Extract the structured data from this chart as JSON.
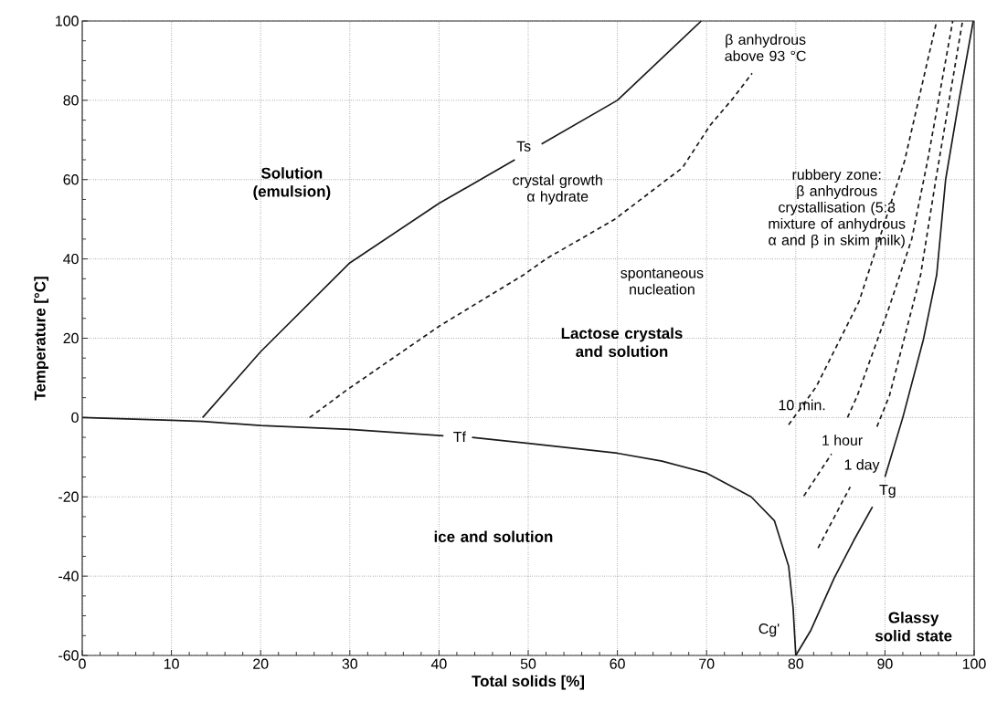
{
  "chart_data": {
    "type": "line",
    "xlabel": "Total solids [%]",
    "ylabel": "Temperature [°C]",
    "xlim": [
      0,
      100
    ],
    "ylim": [
      -60,
      100
    ],
    "xticks": [
      0,
      10,
      20,
      30,
      40,
      50,
      60,
      70,
      80,
      90,
      100
    ],
    "yticks": [
      -60,
      -40,
      -20,
      0,
      20,
      40,
      60,
      80,
      100
    ],
    "grid": true,
    "series": [
      {
        "color": "#1a1a1a",
        "line_style": "solid",
        "x": [
          13.5,
          20,
          30,
          40,
          48.5,
          50,
          51.5,
          60,
          69.4
        ],
        "values": [
          0,
          16.6,
          39,
          54,
          65,
          null,
          69,
          80,
          100
        ]
      },
      {
        "color": "#1a1a1a",
        "line_style": "solid",
        "x": [
          0,
          10,
          13.5,
          20,
          30,
          40.5,
          42,
          43.7,
          50,
          60,
          65,
          70,
          75,
          77.6,
          79.2,
          79.7,
          80
        ],
        "values": [
          0,
          -0.7,
          -1,
          -2,
          -3,
          -4.6,
          null,
          -5,
          -6.5,
          -9,
          -11,
          -14,
          -20,
          -26,
          -37.5,
          -48,
          -60
        ]
      },
      {
        "color": "#1a1a1a",
        "line_style": "solid",
        "x": [
          80,
          81.7,
          84.3,
          86.5,
          88.6,
          89.3,
          90,
          92,
          94.3,
          95.8,
          96.8,
          98.3,
          99.9
        ],
        "values": [
          -60,
          -53.6,
          -40.5,
          -31,
          -22.5,
          null,
          -15,
          0,
          19.6,
          36,
          60,
          80,
          100
        ]
      },
      {
        "color": "#1a1a1a",
        "line_style": "dashed",
        "x": [
          25.5,
          29.7,
          40,
          49.5,
          52,
          59.7,
          67.3,
          70.4,
          73,
          75.1
        ],
        "values": [
          0,
          7,
          23,
          36,
          40,
          50,
          63,
          73.7,
          80.6,
          86.8
        ]
      },
      {
        "color": "#1a1a1a",
        "line_style": "dashed",
        "x": [
          79.2,
          82.3,
          87.1,
          92.2,
          95.8
        ],
        "values": [
          -1.8,
          7.8,
          29.3,
          64.7,
          100
        ]
      },
      {
        "color": "#1a1a1a",
        "line_style": "dashed",
        "x": [
          80.9,
          84,
          85,
          85.8,
          86.9,
          90.5,
          93,
          94.8,
          97.6
        ],
        "values": [
          -19.8,
          -9.2,
          null,
          0,
          5.5,
          28,
          45,
          65,
          100
        ]
      },
      {
        "color": "#1a1a1a",
        "line_style": "dashed",
        "x": [
          82.5,
          86.1,
          87.5,
          89.1,
          90.5,
          94,
          95.7,
          97.2,
          98.7
        ],
        "values": [
          -32.9,
          -17.5,
          null,
          -2.3,
          5.5,
          36,
          60,
          80,
          100
        ]
      }
    ],
    "annotations": [
      "Solution (emulsion)",
      "β anhydrous above 93 °C",
      "crystal growth α hydrate",
      "spontaneous nucleation",
      "Lactose crystals and solution",
      "rubbery zone: β anhydrous crystallisation (5:3 mixture of anhydrous α and β in skim milk)",
      "ice and solution",
      "Glassy solid state",
      "Ts",
      "Tf",
      "Tg",
      "Cg'",
      "10 min.",
      "1 hour",
      "1 day"
    ]
  }
}
